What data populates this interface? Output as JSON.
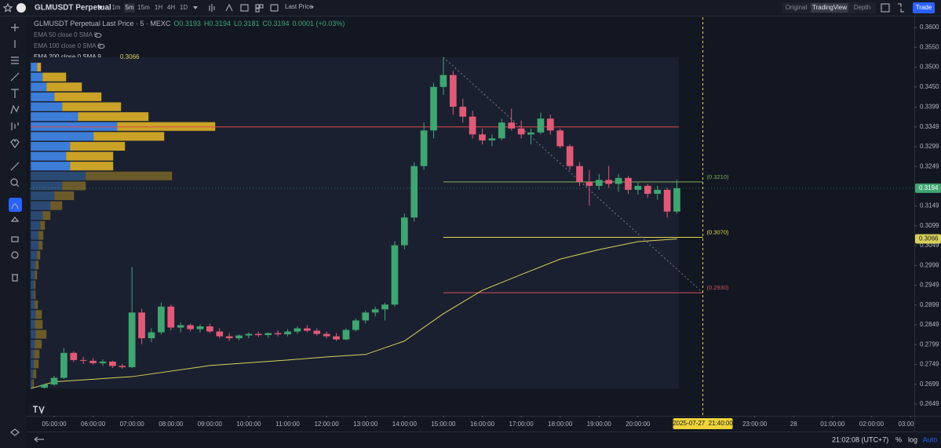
{
  "toolbar": {
    "symbol": "GLMUSDT Perpetual",
    "intervals": [
      "1m",
      "5m",
      "15m",
      "1H",
      "4H",
      "1D"
    ],
    "active_interval": 1,
    "price_type": "Last Price",
    "views": [
      "Original",
      "TradingView",
      "Depth"
    ],
    "active_view": 1,
    "trade": "Trade"
  },
  "legend": {
    "title": "GLMUSDT Perpetual Last Price · 5 · MEXC",
    "ohlc": [
      "O0.3193",
      "H0.3194",
      "L0.3181",
      "C0.3194",
      "0.0001 (+0.03%)"
    ],
    "indicators": [
      "EMA 50 close 0 SMA 9",
      "EMA 100 close 0 SMA 9",
      "EMA 200 close 0 SMA 9"
    ]
  },
  "footer": {
    "clock": "21:02:08 (UTC+7)",
    "options": [
      "%",
      "log",
      "Auto"
    ]
  },
  "chart_data": {
    "type": "candlestick",
    "up_color": "#3fa672",
    "down_color": "#e05a78",
    "x": [
      4.75,
      5,
      5.25,
      5.5,
      5.75,
      6,
      6.25,
      6.5,
      6.75,
      7,
      7.25,
      7.5,
      7.75,
      8,
      8.25,
      8.5,
      8.75,
      9,
      9.25,
      9.5,
      9.75,
      10,
      10.25,
      10.5,
      10.75,
      11,
      11.25,
      11.5,
      11.75,
      12,
      12.25,
      12.5,
      12.75,
      13,
      13.25,
      13.5,
      13.75,
      14,
      14.25,
      14.5,
      14.75,
      15,
      15.25,
      15.5,
      15.75,
      16,
      16.25,
      16.5,
      16.75,
      17,
      17.25,
      17.5,
      17.75,
      18,
      18.25,
      18.5,
      18.75,
      19,
      19.25,
      19.5,
      19.75,
      20,
      20.25,
      20.5,
      20.75,
      21
    ],
    "open": [
      0.269,
      0.2698,
      0.2715,
      0.2778,
      0.276,
      0.2758,
      0.2752,
      0.2756,
      0.2745,
      0.2742,
      0.288,
      0.2815,
      0.283,
      0.2895,
      0.2842,
      0.2848,
      0.2838,
      0.2845,
      0.2832,
      0.282,
      0.2815,
      0.2822,
      0.2826,
      0.2823,
      0.2828,
      0.2825,
      0.2832,
      0.284,
      0.2834,
      0.2826,
      0.282,
      0.2812,
      0.2836,
      0.286,
      0.288,
      0.2888,
      0.29,
      0.305,
      0.312,
      0.325,
      0.334,
      0.345,
      0.348,
      0.34,
      0.3375,
      0.333,
      0.3315,
      0.332,
      0.336,
      0.3345,
      0.333,
      0.3335,
      0.337,
      0.334,
      0.33,
      0.325,
      0.321,
      0.32,
      0.3215,
      0.3205,
      0.322,
      0.319,
      0.32,
      0.318,
      0.319,
      0.3135
    ],
    "high": [
      0.27,
      0.272,
      0.279,
      0.2782,
      0.2768,
      0.2765,
      0.2762,
      0.2758,
      0.275,
      0.2995,
      0.289,
      0.284,
      0.2905,
      0.29,
      0.2855,
      0.2852,
      0.285,
      0.2852,
      0.284,
      0.2828,
      0.2825,
      0.283,
      0.2832,
      0.283,
      0.2835,
      0.2838,
      0.2845,
      0.2848,
      0.284,
      0.2832,
      0.2828,
      0.284,
      0.2865,
      0.2885,
      0.2895,
      0.2905,
      0.306,
      0.313,
      0.326,
      0.336,
      0.346,
      0.3525,
      0.349,
      0.342,
      0.339,
      0.3345,
      0.333,
      0.337,
      0.3395,
      0.3365,
      0.3345,
      0.3385,
      0.338,
      0.3345,
      0.3305,
      0.326,
      0.324,
      0.323,
      0.325,
      0.323,
      0.3225,
      0.321,
      0.3205,
      0.32,
      0.3195,
      0.3215
    ],
    "low": [
      0.2688,
      0.2695,
      0.2712,
      0.2755,
      0.275,
      0.2748,
      0.2745,
      0.274,
      0.2738,
      0.274,
      0.28,
      0.2805,
      0.2825,
      0.2835,
      0.283,
      0.2832,
      0.283,
      0.2828,
      0.2815,
      0.2808,
      0.281,
      0.2815,
      0.2818,
      0.2816,
      0.282,
      0.282,
      0.2826,
      0.283,
      0.2822,
      0.2815,
      0.2808,
      0.281,
      0.2832,
      0.2852,
      0.287,
      0.286,
      0.2895,
      0.304,
      0.311,
      0.324,
      0.332,
      0.343,
      0.338,
      0.336,
      0.332,
      0.3305,
      0.33,
      0.3315,
      0.334,
      0.332,
      0.3305,
      0.333,
      0.333,
      0.3295,
      0.324,
      0.32,
      0.315,
      0.319,
      0.3195,
      0.3185,
      0.318,
      0.3178,
      0.317,
      0.3165,
      0.312,
      0.313
    ],
    "close": [
      0.2698,
      0.2715,
      0.2778,
      0.276,
      0.2758,
      0.2752,
      0.2756,
      0.2745,
      0.2742,
      0.288,
      0.2815,
      0.283,
      0.2895,
      0.2842,
      0.2848,
      0.2838,
      0.2845,
      0.2832,
      0.282,
      0.2815,
      0.2822,
      0.2826,
      0.2823,
      0.2828,
      0.2825,
      0.2832,
      0.284,
      0.2834,
      0.2826,
      0.282,
      0.2812,
      0.2836,
      0.286,
      0.288,
      0.2888,
      0.29,
      0.305,
      0.312,
      0.325,
      0.334,
      0.345,
      0.348,
      0.34,
      0.3375,
      0.333,
      0.3315,
      0.332,
      0.336,
      0.3345,
      0.333,
      0.3335,
      0.337,
      0.334,
      0.33,
      0.325,
      0.321,
      0.32,
      0.3215,
      0.3205,
      0.322,
      0.319,
      0.32,
      0.318,
      0.319,
      0.3135,
      0.3194
    ],
    "ema": {
      "color": "#d8d15a",
      "x": [
        4.4,
        5,
        7,
        9,
        11,
        12,
        13,
        14,
        15,
        16,
        17,
        18,
        19,
        20,
        21
      ],
      "values": [
        0.2688,
        0.2705,
        0.2718,
        0.2746,
        0.276,
        0.2768,
        0.2774,
        0.2808,
        0.2877,
        0.2936,
        0.2976,
        0.3015,
        0.3039,
        0.3059,
        0.3066
      ]
    },
    "profile": {
      "x_range": [
        4.4,
        21.05
      ],
      "value_area": [
        0.324,
        0.351
      ],
      "buy_color": "#3d7dd8",
      "sell_color": "#c9a227",
      "outside_buy_color": "#2b4a73",
      "outside_sell_color": "#6b5a2a",
      "poc": 0.3349,
      "poc_color": "#e04c4c",
      "prices": [
        0.35,
        0.3475,
        0.345,
        0.3425,
        0.34,
        0.3375,
        0.335,
        0.3325,
        0.33,
        0.3275,
        0.325,
        0.3225,
        0.32,
        0.3175,
        0.315,
        0.3125,
        0.31,
        0.3075,
        0.305,
        0.3025,
        0.3,
        0.2975,
        0.295,
        0.2925,
        0.29,
        0.2875,
        0.285,
        0.2825,
        0.28,
        0.2775,
        0.275,
        0.2725,
        0.27
      ],
      "buy": [
        8,
        15,
        20,
        30,
        40,
        60,
        110,
        80,
        50,
        45,
        50,
        70,
        40,
        30,
        25,
        15,
        12,
        10,
        10,
        8,
        6,
        5,
        4,
        4,
        5,
        6,
        5,
        6,
        5,
        4,
        4,
        3,
        2
      ],
      "sell": [
        5,
        30,
        45,
        60,
        75,
        90,
        125,
        90,
        70,
        60,
        55,
        110,
        30,
        25,
        15,
        10,
        6,
        6,
        5,
        4,
        4,
        3,
        2,
        2,
        4,
        8,
        10,
        14,
        9,
        7,
        6,
        4,
        2
      ]
    },
    "levels": [
      {
        "value": 0.321,
        "label": "(0.3210)",
        "color": "#7caf5a",
        "x_range": [
          15,
          21.667
        ]
      },
      {
        "value": 0.307,
        "label": "(0.3070)",
        "color": "#e6d84a",
        "x_range": [
          15,
          21.667
        ]
      },
      {
        "value": 0.293,
        "label": "(0.2930)",
        "color": "#d0505a",
        "x_range": [
          15,
          21.667
        ]
      }
    ],
    "trendline": {
      "x": [
        15,
        21.667
      ],
      "y": [
        0.3525,
        0.293
      ]
    },
    "crosshair": {
      "value": 21.667,
      "label": "2025-07-27  21:40:00"
    },
    "xlim": [
      4.375,
      27.1
    ],
    "xticks": [
      {
        "value": 5,
        "label": "05:00:00"
      },
      {
        "value": 6,
        "label": "06:00:00"
      },
      {
        "value": 7,
        "label": "07:00:00"
      },
      {
        "value": 8,
        "label": "08:00:00"
      },
      {
        "value": 9,
        "label": "09:00:00"
      },
      {
        "value": 10,
        "label": "10:00:00"
      },
      {
        "value": 11,
        "label": "11:00:00"
      },
      {
        "value": 12,
        "label": "12:00:00"
      },
      {
        "value": 13,
        "label": "13:00:00"
      },
      {
        "value": 14,
        "label": "14:00:00"
      },
      {
        "value": 15,
        "label": "15:00:00"
      },
      {
        "value": 16,
        "label": "16:00:00"
      },
      {
        "value": 17,
        "label": "17:00:00"
      },
      {
        "value": 18,
        "label": "18:00:00"
      },
      {
        "value": 19,
        "label": "19:00:00"
      },
      {
        "value": 20,
        "label": "20:00:00"
      },
      {
        "value": 23,
        "label": "23:00:00"
      },
      {
        "value": 24,
        "label": "28"
      },
      {
        "value": 25,
        "label": "01:00:00"
      },
      {
        "value": 26,
        "label": "02:00:00"
      },
      {
        "value": 27,
        "label": "03:00:00"
      }
    ],
    "ylim": [
      0.2619,
      0.3626
    ],
    "yticks": [
      {
        "value": 0.36,
        "label": "0.3600"
      },
      {
        "value": 0.355,
        "label": "0.3550"
      },
      {
        "value": 0.35,
        "label": "0.3500"
      },
      {
        "value": 0.345,
        "label": "0.3450"
      },
      0.3399,
      0.3349,
      0.3299,
      0.3249,
      0.3149,
      0.3099,
      0.3049,
      0.2999,
      0.2949,
      0.2899,
      0.2849,
      0.2799,
      0.2749,
      0.2699,
      0.2649
    ],
    "grid": false
  }
}
